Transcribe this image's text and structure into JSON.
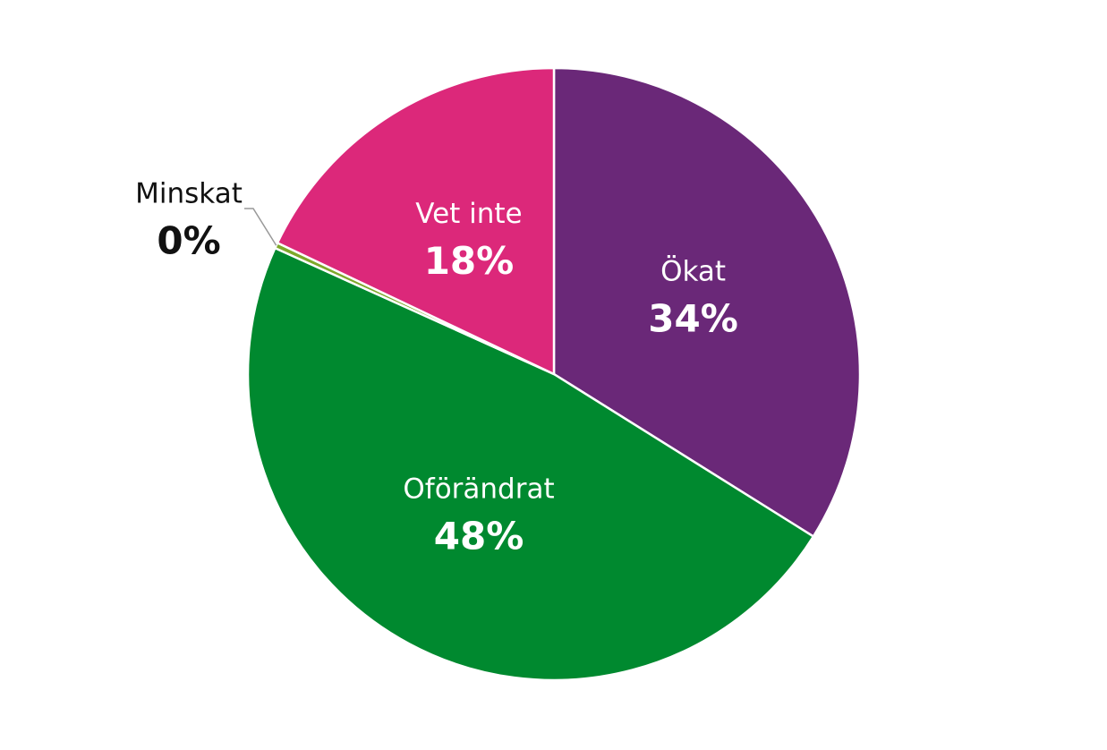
{
  "chart_data": {
    "type": "pie",
    "categories": [
      "Ökat",
      "Oförändrat",
      "Minskat",
      "Vet inte"
    ],
    "values": [
      34,
      48,
      0.3,
      18
    ],
    "value_labels": [
      "34%",
      "48%",
      "0%",
      "18%"
    ],
    "colors": [
      "#6a2878",
      "#00892f",
      "#7ea82a",
      "#dc287a"
    ]
  }
}
